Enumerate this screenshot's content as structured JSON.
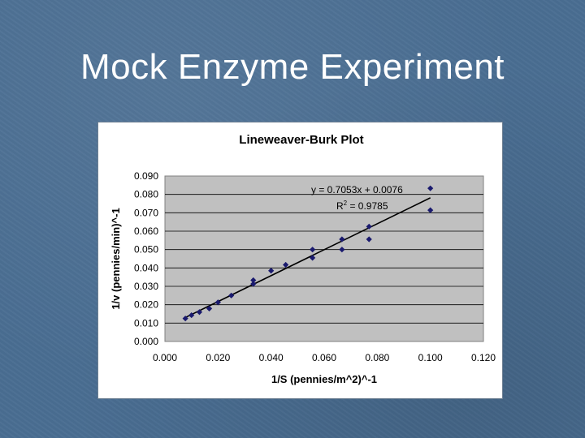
{
  "slide": {
    "title": "Mock Enzyme Experiment"
  },
  "chart_data": {
    "type": "scatter",
    "title": "Lineweaver-Burk Plot",
    "xlabel": "1/S (pennies/m^2)^-1",
    "ylabel": "1/v (pennies/min)^-1",
    "xlim": [
      0.0,
      0.12
    ],
    "ylim": [
      0.0,
      0.09
    ],
    "x_ticks": [
      "0.000",
      "0.020",
      "0.040",
      "0.060",
      "0.080",
      "0.100",
      "0.120"
    ],
    "y_ticks": [
      "0.000",
      "0.010",
      "0.020",
      "0.030",
      "0.040",
      "0.050",
      "0.060",
      "0.070",
      "0.080",
      "0.090"
    ],
    "grid": "horizontal",
    "plot_background": "#c0c0c0",
    "marker_color": "#1a1a6e",
    "line_color": "#000000",
    "series": [
      {
        "x": [
          0.0077,
          0.01,
          0.013,
          0.0167,
          0.02,
          0.025,
          0.0333,
          0.0333,
          0.04,
          0.0455,
          0.0556,
          0.0556,
          0.0667,
          0.0667,
          0.0769,
          0.0769,
          0.1,
          0.1
        ],
        "y": [
          0.0125,
          0.0143,
          0.016,
          0.0179,
          0.0213,
          0.025,
          0.0333,
          0.0313,
          0.0385,
          0.0417,
          0.05,
          0.0455,
          0.0556,
          0.05,
          0.0625,
          0.0556,
          0.0833,
          0.0714
        ]
      }
    ],
    "trendline": {
      "slope": 0.7053,
      "intercept": 0.0076,
      "x_range": [
        0.0077,
        0.1
      ]
    },
    "annotation": {
      "equation": "y = 0.7053x + 0.0076",
      "r2_prefix": "R",
      "r2_sup": "2",
      "r2_value": " = 0.9785"
    }
  }
}
